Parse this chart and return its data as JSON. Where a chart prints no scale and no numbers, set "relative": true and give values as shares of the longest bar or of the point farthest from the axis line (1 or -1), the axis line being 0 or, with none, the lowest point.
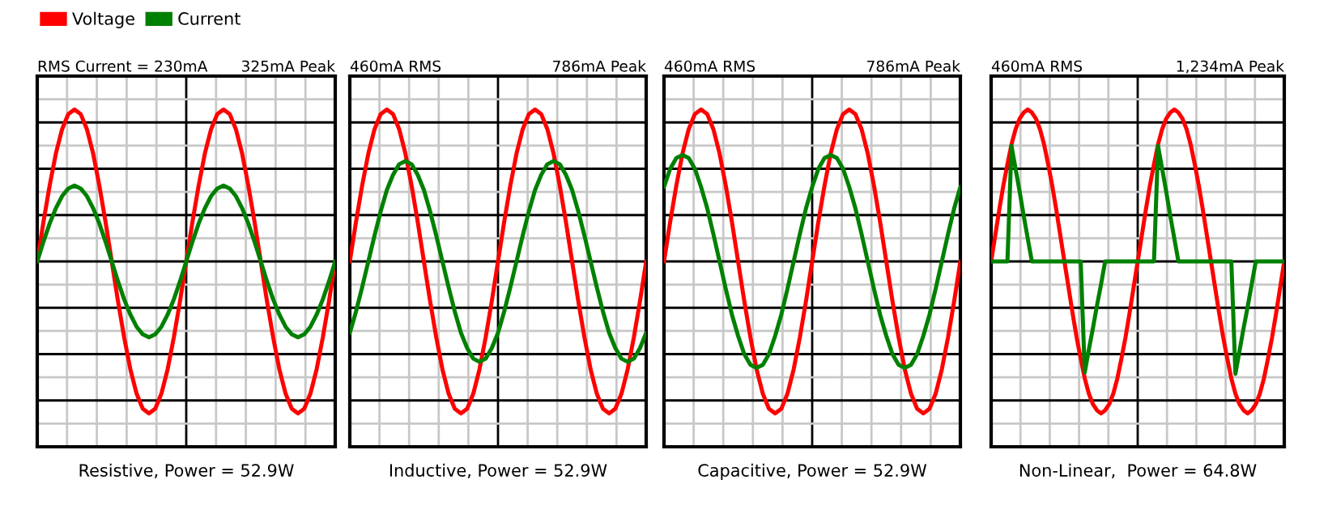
{
  "chart_data": [
    {
      "type": "line",
      "relative": true,
      "title": "RMS Current = 230mA",
      "subtitle": "325mA Peak",
      "xlabel": "Resistive, Power = 52.9W",
      "grid": true,
      "legend": "top left",
      "categories": [
        null,
        null,
        null,
        null,
        null,
        null,
        null,
        null,
        null,
        null,
        null,
        null,
        null,
        null,
        null,
        null,
        null,
        null,
        null,
        null,
        null,
        null,
        null,
        null,
        null,
        null,
        null,
        null,
        null,
        null,
        null,
        null,
        null,
        null,
        null,
        null,
        null,
        null,
        null,
        null,
        null,
        null,
        null,
        null,
        null,
        null,
        null,
        null,
        null
      ],
      "series": [
        {
          "name": "Voltage",
          "color": "#ff0000",
          "values": [
            0,
            0.26,
            0.5,
            0.71,
            0.87,
            0.97,
            1,
            0.97,
            0.87,
            0.71,
            0.5,
            0.26,
            0,
            -0.26,
            -0.5,
            -0.71,
            -0.87,
            -0.97,
            -1,
            -0.97,
            -0.87,
            -0.71,
            -0.5,
            -0.26,
            0,
            0.26,
            0.5,
            0.71,
            0.87,
            0.97,
            1,
            0.97,
            0.87,
            0.71,
            0.5,
            0.26,
            0,
            -0.26,
            -0.5,
            -0.71,
            -0.87,
            -0.97,
            -1,
            -0.97,
            -0.87,
            -0.71,
            -0.5,
            -0.26,
            0
          ]
        },
        {
          "name": "Current",
          "color": "#008000",
          "values": [
            0,
            0.13,
            0.25,
            0.35,
            0.43,
            0.48,
            0.5,
            0.48,
            0.43,
            0.35,
            0.25,
            0.13,
            0,
            -0.13,
            -0.25,
            -0.35,
            -0.43,
            -0.48,
            -0.5,
            -0.48,
            -0.43,
            -0.35,
            -0.25,
            -0.13,
            0,
            0.13,
            0.25,
            0.35,
            0.43,
            0.48,
            0.5,
            0.48,
            0.43,
            0.35,
            0.25,
            0.13,
            0,
            -0.13,
            -0.25,
            -0.35,
            -0.43,
            -0.48,
            -0.5,
            -0.48,
            -0.43,
            -0.35,
            -0.25,
            -0.13,
            0
          ]
        }
      ]
    },
    {
      "type": "line",
      "relative": true,
      "title": "460mA RMS",
      "subtitle": "786mA Peak",
      "xlabel": "Inductive, Power = 52.9W",
      "grid": true,
      "categories": [
        null,
        null,
        null,
        null,
        null,
        null,
        null,
        null,
        null,
        null,
        null,
        null,
        null,
        null,
        null,
        null,
        null,
        null,
        null,
        null,
        null,
        null,
        null,
        null,
        null,
        null,
        null,
        null,
        null,
        null,
        null,
        null,
        null,
        null,
        null,
        null,
        null,
        null,
        null,
        null,
        null,
        null,
        null,
        null,
        null,
        null,
        null,
        null,
        null
      ],
      "series": [
        {
          "color": "#ff0000",
          "values": [
            0,
            0.26,
            0.5,
            0.71,
            0.87,
            0.97,
            1,
            0.97,
            0.87,
            0.71,
            0.5,
            0.26,
            0,
            -0.26,
            -0.5,
            -0.71,
            -0.87,
            -0.97,
            -1,
            -0.97,
            -0.87,
            -0.71,
            -0.5,
            -0.26,
            0,
            0.26,
            0.5,
            0.71,
            0.87,
            0.97,
            1,
            0.97,
            0.87,
            0.71,
            0.5,
            0.26,
            0,
            -0.26,
            -0.5,
            -0.71,
            -0.87,
            -0.97,
            -1,
            -0.97,
            -0.87,
            -0.71,
            -0.5,
            -0.26,
            0
          ]
        },
        {
          "color": "#008000",
          "values": [
            -0.47,
            -0.33,
            -0.17,
            0,
            0.17,
            0.33,
            0.47,
            0.57,
            0.64,
            0.66,
            0.64,
            0.57,
            0.47,
            0.33,
            0.17,
            0,
            -0.17,
            -0.33,
            -0.47,
            -0.57,
            -0.64,
            -0.66,
            -0.64,
            -0.57,
            -0.47,
            -0.33,
            -0.17,
            0,
            0.17,
            0.33,
            0.47,
            0.57,
            0.64,
            0.66,
            0.64,
            0.57,
            0.47,
            0.33,
            0.17,
            0,
            -0.17,
            -0.33,
            -0.47,
            -0.57,
            -0.64,
            -0.66,
            -0.64,
            -0.57,
            -0.47
          ]
        }
      ]
    },
    {
      "type": "line",
      "relative": true,
      "title": "460mA RMS",
      "subtitle": "786mA Peak",
      "xlabel": "Capacitive, Power = 52.9W",
      "grid": true,
      "categories": [
        null,
        null,
        null,
        null,
        null,
        null,
        null,
        null,
        null,
        null,
        null,
        null,
        null,
        null,
        null,
        null,
        null,
        null,
        null,
        null,
        null,
        null,
        null,
        null,
        null,
        null,
        null,
        null,
        null,
        null,
        null,
        null,
        null,
        null,
        null,
        null,
        null,
        null,
        null,
        null,
        null,
        null,
        null,
        null,
        null,
        null,
        null,
        null,
        null
      ],
      "series": [
        {
          "color": "#ff0000",
          "values": [
            0,
            0.26,
            0.5,
            0.71,
            0.87,
            0.97,
            1,
            0.97,
            0.87,
            0.71,
            0.5,
            0.26,
            0,
            -0.26,
            -0.5,
            -0.71,
            -0.87,
            -0.97,
            -1,
            -0.97,
            -0.87,
            -0.71,
            -0.5,
            -0.26,
            0,
            0.26,
            0.5,
            0.71,
            0.87,
            0.97,
            1,
            0.97,
            0.87,
            0.71,
            0.5,
            0.26,
            0,
            -0.26,
            -0.5,
            -0.71,
            -0.87,
            -0.97,
            -1,
            -0.97,
            -0.87,
            -0.71,
            -0.5,
            -0.26,
            0
          ]
        },
        {
          "color": "#008000",
          "values": [
            0.49,
            0.61,
            0.68,
            0.7,
            0.68,
            0.61,
            0.49,
            0.35,
            0.18,
            0,
            -0.18,
            -0.35,
            -0.49,
            -0.61,
            -0.68,
            -0.7,
            -0.68,
            -0.61,
            -0.49,
            -0.35,
            -0.18,
            0,
            0.18,
            0.35,
            0.49,
            0.61,
            0.68,
            0.7,
            0.68,
            0.61,
            0.49,
            0.35,
            0.18,
            0,
            -0.18,
            -0.35,
            -0.49,
            -0.61,
            -0.68,
            -0.7,
            -0.68,
            -0.61,
            -0.49,
            -0.35,
            -0.18,
            0,
            0.18,
            0.35,
            0.49
          ]
        }
      ]
    },
    {
      "type": "line",
      "relative": true,
      "title": "460mA RMS",
      "subtitle": "1,234mA Peak",
      "xlabel": "Non-Linear,  Power = 64.8W",
      "grid": true,
      "categories": [
        null,
        null,
        null,
        null,
        null,
        null,
        null,
        null,
        null,
        null,
        null,
        null,
        null,
        null,
        null,
        null,
        null,
        null,
        null,
        null,
        null,
        null,
        null,
        null,
        null,
        null,
        null,
        null,
        null,
        null,
        null,
        null,
        null,
        null,
        null,
        null,
        null,
        null,
        null,
        null,
        null,
        null,
        null,
        null,
        null,
        null,
        null,
        null,
        null,
        null,
        null,
        null,
        null,
        null,
        null,
        null,
        null,
        null,
        null,
        null,
        null,
        null,
        null,
        null,
        null,
        null,
        null,
        null,
        null,
        null,
        null,
        null,
        null
      ],
      "series": [
        {
          "color": "#ff0000",
          "values": [
            0,
            0.17,
            0.34,
            0.5,
            0.64,
            0.77,
            0.87,
            0.94,
            0.98,
            1,
            0.98,
            0.94,
            0.87,
            0.77,
            0.64,
            0.5,
            0.34,
            0.17,
            0,
            -0.17,
            -0.34,
            -0.5,
            -0.64,
            -0.77,
            -0.87,
            -0.94,
            -0.98,
            -1,
            -0.98,
            -0.94,
            -0.87,
            -0.77,
            -0.64,
            -0.5,
            -0.34,
            -0.17,
            0,
            0.17,
            0.34,
            0.5,
            0.64,
            0.77,
            0.87,
            0.94,
            0.98,
            1,
            0.98,
            0.94,
            0.87,
            0.77,
            0.64,
            0.5,
            0.34,
            0.17,
            0,
            -0.17,
            -0.34,
            -0.5,
            -0.64,
            -0.77,
            -0.87,
            -0.94,
            -0.98,
            -1,
            -0.98,
            -0.94,
            -0.87,
            -0.77,
            -0.64,
            -0.5,
            -0.34,
            -0.17,
            0
          ]
        },
        {
          "color": "#008000",
          "values": [
            0,
            0,
            0,
            0,
            0,
            0.76,
            0.61,
            0.46,
            0.3,
            0.15,
            0,
            0,
            0,
            0,
            0,
            0,
            0,
            0,
            0,
            0,
            0,
            0,
            0,
            -0.73,
            -0.58,
            -0.44,
            -0.29,
            -0.15,
            0,
            0,
            0,
            0,
            0,
            0,
            0,
            0,
            0,
            0,
            0,
            0,
            0,
            0.76,
            0.61,
            0.46,
            0.3,
            0.15,
            0,
            0,
            0,
            0,
            0,
            0,
            0,
            0,
            0,
            0,
            0,
            0,
            0,
            0,
            -0.74,
            -0.59,
            -0.44,
            -0.3,
            -0.15,
            0,
            0,
            0,
            0,
            0,
            0,
            0,
            0
          ]
        }
      ]
    }
  ]
}
